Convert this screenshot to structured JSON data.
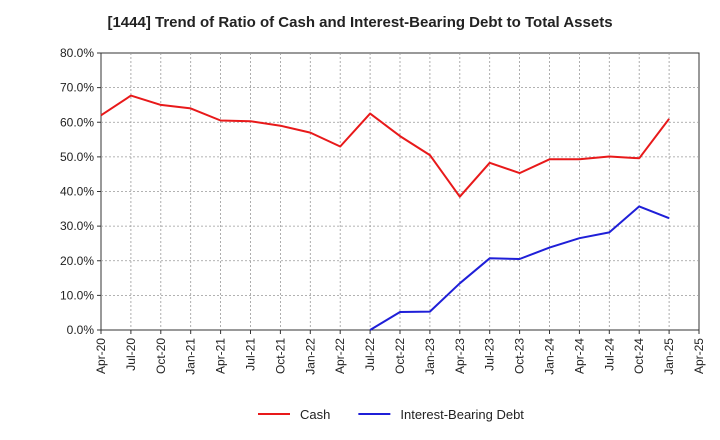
{
  "chart_data": {
    "type": "line",
    "title": "[1444]  Trend of Ratio of Cash and Interest-Bearing Debt to Total Assets",
    "xlabel": "",
    "ylabel": "",
    "ylim": [
      0,
      0.8
    ],
    "y_ticks": [
      "0.0%",
      "10.0%",
      "20.0%",
      "30.0%",
      "40.0%",
      "50.0%",
      "60.0%",
      "70.0%",
      "80.0%"
    ],
    "x_ticks": [
      "Apr-20",
      "Jul-20",
      "Oct-20",
      "Jan-21",
      "Apr-21",
      "Jul-21",
      "Oct-21",
      "Jan-22",
      "Apr-22",
      "Jul-22",
      "Oct-22",
      "Jan-23",
      "Apr-23",
      "Jul-23",
      "Oct-23",
      "Jan-24",
      "Apr-24",
      "Jul-24",
      "Oct-24",
      "Jan-25",
      "Apr-25"
    ],
    "grid": true,
    "legend_position": "bottom-center",
    "series": [
      {
        "name": "Cash",
        "color": "#e8191a",
        "x": [
          "Apr-20",
          "Jul-20",
          "Oct-20",
          "Jan-21",
          "Apr-21",
          "Jul-21",
          "Oct-21",
          "Jan-22",
          "Apr-22",
          "Jul-22",
          "Oct-22",
          "Jan-23",
          "Apr-23",
          "Jul-23",
          "Oct-23",
          "Jan-24",
          "Apr-24",
          "Jul-24",
          "Oct-24",
          "Jan-25"
        ],
        "values": [
          0.62,
          0.677,
          0.65,
          0.64,
          0.605,
          0.603,
          0.59,
          0.57,
          0.53,
          0.625,
          0.56,
          0.505,
          0.385,
          0.483,
          0.453,
          0.493,
          0.493,
          0.501,
          0.496,
          0.61
        ]
      },
      {
        "name": "Interest-Bearing Debt",
        "color": "#1f1fd8",
        "x": [
          "Jul-22",
          "Oct-22",
          "Jan-23",
          "Apr-23",
          "Jul-23",
          "Oct-23",
          "Jan-24",
          "Apr-24",
          "Jul-24",
          "Oct-24",
          "Jan-25"
        ],
        "values": [
          0.0,
          0.052,
          0.053,
          0.135,
          0.207,
          0.205,
          0.238,
          0.265,
          0.282,
          0.357,
          0.323
        ]
      }
    ]
  }
}
